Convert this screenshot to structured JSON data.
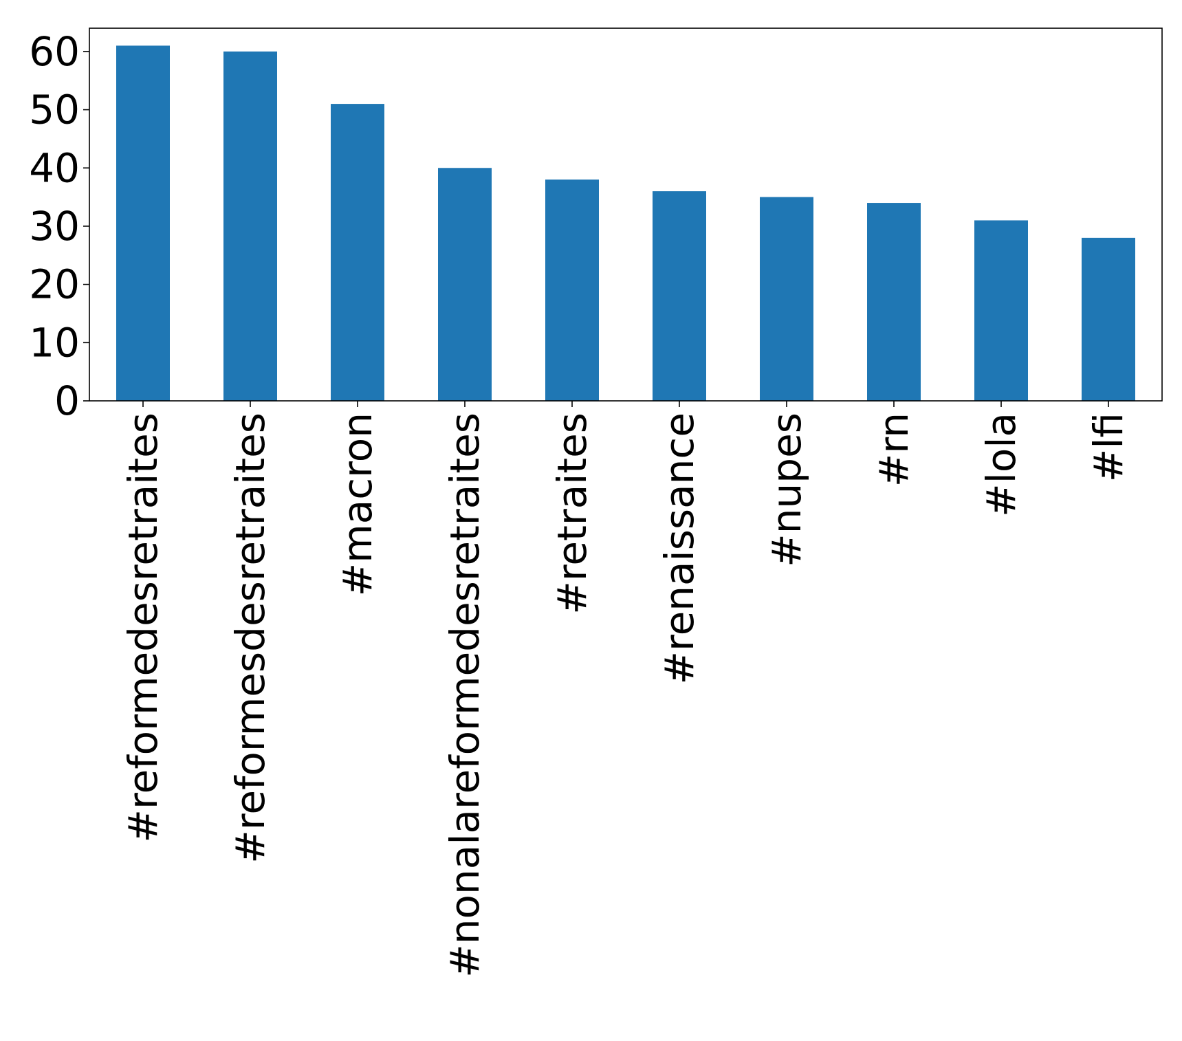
{
  "chart_data": {
    "type": "bar",
    "title": "",
    "xlabel": "",
    "ylabel": "",
    "categories": [
      "#reformedesretraites",
      "#reformesdesretraites",
      "#macron",
      "#nonalareformedesretraites",
      "#retraites",
      "#renaissance",
      "#nupes",
      "#rn",
      "#lola",
      "#lfi"
    ],
    "values": [
      61,
      60,
      51,
      40,
      38,
      36,
      35,
      34,
      31,
      28
    ],
    "ylim": [
      0,
      64
    ],
    "yticks": [
      0,
      10,
      20,
      30,
      40,
      50,
      60
    ],
    "grid": false,
    "legend": "none",
    "bar_color": "#1f77b4",
    "x_tick_rotation_deg": 90
  }
}
